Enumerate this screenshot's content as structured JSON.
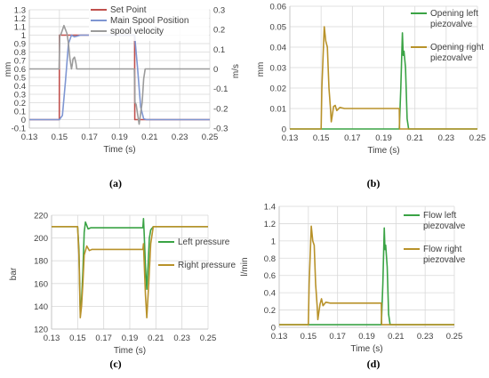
{
  "figure": {
    "captions": [
      "(a)",
      "(b)",
      "(c)",
      "(d)"
    ]
  },
  "colors": {
    "set_point": "#c0504d",
    "main_spool": "#7f96d2",
    "spool_velocity": "#9b9b9b",
    "left": "#3aa345",
    "right": "#b8922a"
  },
  "chart_data": [
    {
      "type": "line",
      "caption": "(a)",
      "xlabel": "Time (s)",
      "ylabel": "mm",
      "y2label": "m/s",
      "xlim": [
        0.13,
        0.25
      ],
      "ylim": [
        -0.1,
        1.3
      ],
      "y2lim": [
        -0.3,
        0.3
      ],
      "xticks": [
        "0.13",
        "0.15",
        "0.17",
        "0.19",
        "0.21",
        "0.23",
        "0.25"
      ],
      "yticks": [
        "-0.1",
        "0",
        "0.1",
        "0.2",
        "0.3",
        "0.4",
        "0.5",
        "0.6",
        "0.7",
        "0.8",
        "0.9",
        "1",
        "1.1",
        "1.2",
        "1.3"
      ],
      "y2ticks": [
        "-0.3",
        "-0.2",
        "-0.1",
        "0",
        "0.1",
        "0.2",
        "0.3"
      ],
      "legend": "top-left",
      "series": [
        {
          "name": "Set Point",
          "axis": "left",
          "x": [
            0.13,
            0.1499,
            0.15,
            0.2,
            0.2001,
            0.25
          ],
          "y": [
            0,
            0,
            1,
            1,
            0,
            0
          ]
        },
        {
          "name": "Main Spool Position",
          "axis": "left",
          "x": [
            0.13,
            0.15,
            0.152,
            0.154,
            0.156,
            0.158,
            0.16,
            0.162,
            0.164,
            0.2,
            0.202,
            0.204,
            0.206,
            0.208,
            0.25
          ],
          "y": [
            0,
            0,
            0.05,
            0.45,
            0.9,
            1.0,
            0.98,
            0.99,
            1.0,
            1.0,
            0.6,
            0.15,
            0.01,
            0,
            0
          ]
        },
        {
          "name": "spool velocity",
          "axis": "right",
          "x": [
            0.13,
            0.1498,
            0.1502,
            0.151,
            0.153,
            0.155,
            0.156,
            0.157,
            0.158,
            0.1585,
            0.159,
            0.16,
            0.161,
            0.1615,
            0.162,
            0.163,
            0.165,
            0.1998,
            0.2002,
            0.201,
            0.203,
            0.205,
            0.206,
            0.207,
            0.25
          ],
          "y": [
            0,
            0,
            0.17,
            0.175,
            0.22,
            0.18,
            0.13,
            0.05,
            0.0,
            0.02,
            0.05,
            0.06,
            0.03,
            0.0,
            0.0,
            0.0,
            0,
            0,
            -0.17,
            -0.18,
            -0.28,
            -0.17,
            -0.05,
            0,
            0
          ]
        }
      ]
    },
    {
      "type": "line",
      "caption": "(b)",
      "xlabel": "Time (s)",
      "ylabel": "mm",
      "xlim": [
        0.13,
        0.25
      ],
      "ylim": [
        0,
        0.06
      ],
      "xticks": [
        "0.13",
        "0.15",
        "0.17",
        "0.19",
        "0.21",
        "0.23",
        "0.25"
      ],
      "yticks": [
        "0",
        "0.01",
        "0.02",
        "0.03",
        "0.04",
        "0.05",
        "0.06"
      ],
      "legend": "right",
      "series": [
        {
          "name": "Opening left piezovalve",
          "x": [
            0.13,
            0.2,
            0.201,
            0.202,
            0.2025,
            0.203,
            0.204,
            0.205,
            0.206,
            0.25
          ],
          "y": [
            0,
            0,
            0.02,
            0.047,
            0.036,
            0.038,
            0.03,
            0.005,
            0,
            0
          ]
        },
        {
          "name": "Opening right piezovalve",
          "x": [
            0.13,
            0.15,
            0.1505,
            0.152,
            0.153,
            0.154,
            0.155,
            0.156,
            0.1565,
            0.157,
            0.158,
            0.159,
            0.16,
            0.162,
            0.165,
            0.17,
            0.2,
            0.2002,
            0.25
          ],
          "y": [
            0,
            0,
            0.02,
            0.05,
            0.043,
            0.04,
            0.02,
            0.01,
            0.0035,
            0.006,
            0.011,
            0.0115,
            0.009,
            0.0105,
            0.01,
            0.01,
            0.01,
            0,
            0
          ]
        }
      ]
    },
    {
      "type": "line",
      "caption": "(c)",
      "xlabel": "Time (s)",
      "ylabel": "bar",
      "xlim": [
        0.13,
        0.25
      ],
      "ylim": [
        120,
        220
      ],
      "xticks": [
        "0.13",
        "0.15",
        "0.17",
        "0.19",
        "0.21",
        "0.23",
        "0.25"
      ],
      "yticks": [
        "120",
        "140",
        "160",
        "180",
        "200",
        "220"
      ],
      "legend": "right",
      "series": [
        {
          "name": "Left pressure",
          "x": [
            0.13,
            0.15,
            0.151,
            0.152,
            0.153,
            0.154,
            0.155,
            0.156,
            0.157,
            0.158,
            0.16,
            0.2,
            0.2005,
            0.201,
            0.202,
            0.203,
            0.204,
            0.205,
            0.206,
            0.208,
            0.25
          ],
          "y": [
            210,
            210,
            190,
            135,
            145,
            170,
            205,
            214,
            211,
            208,
            209,
            209,
            217,
            205,
            175,
            155,
            175,
            200,
            207,
            210,
            210
          ]
        },
        {
          "name": "Right pressure",
          "x": [
            0.13,
            0.15,
            0.151,
            0.152,
            0.153,
            0.154,
            0.155,
            0.157,
            0.159,
            0.161,
            0.165,
            0.2,
            0.2005,
            0.201,
            0.202,
            0.203,
            0.2045,
            0.206,
            0.208,
            0.25
          ],
          "y": [
            210,
            210,
            185,
            130,
            140,
            160,
            185,
            193,
            189,
            190,
            190,
            190,
            195,
            180,
            150,
            130,
            160,
            195,
            210,
            210
          ]
        }
      ]
    },
    {
      "type": "line",
      "caption": "(d)",
      "xlabel": "Time (s)",
      "ylabel": "l/min",
      "xlim": [
        0.13,
        0.25
      ],
      "ylim": [
        0,
        1.4
      ],
      "xticks": [
        "0.13",
        "0.15",
        "0.17",
        "0.19",
        "0.21",
        "0.23",
        "0.25"
      ],
      "yticks": [
        "0",
        "0.2",
        "0.4",
        "0.6",
        "0.8",
        "1",
        "1.2",
        "1.4"
      ],
      "legend": "right",
      "series": [
        {
          "name": "Flow left piezovalve",
          "x": [
            0.13,
            0.2,
            0.201,
            0.202,
            0.2025,
            0.203,
            0.204,
            0.205,
            0.206,
            0.25
          ],
          "y": [
            0.03,
            0.03,
            0.5,
            1.15,
            0.9,
            0.95,
            0.7,
            0.15,
            0.03,
            0.03
          ]
        },
        {
          "name": "Flow right piezovalve",
          "x": [
            0.13,
            0.15,
            0.1505,
            0.152,
            0.153,
            0.154,
            0.155,
            0.156,
            0.1565,
            0.157,
            0.158,
            0.159,
            0.16,
            0.162,
            0.165,
            0.17,
            0.2,
            0.2002,
            0.25
          ],
          "y": [
            0.03,
            0.03,
            0.5,
            1.17,
            1.0,
            0.95,
            0.5,
            0.25,
            0.09,
            0.15,
            0.27,
            0.33,
            0.25,
            0.29,
            0.28,
            0.28,
            0.28,
            0.03,
            0.03
          ]
        }
      ]
    }
  ]
}
